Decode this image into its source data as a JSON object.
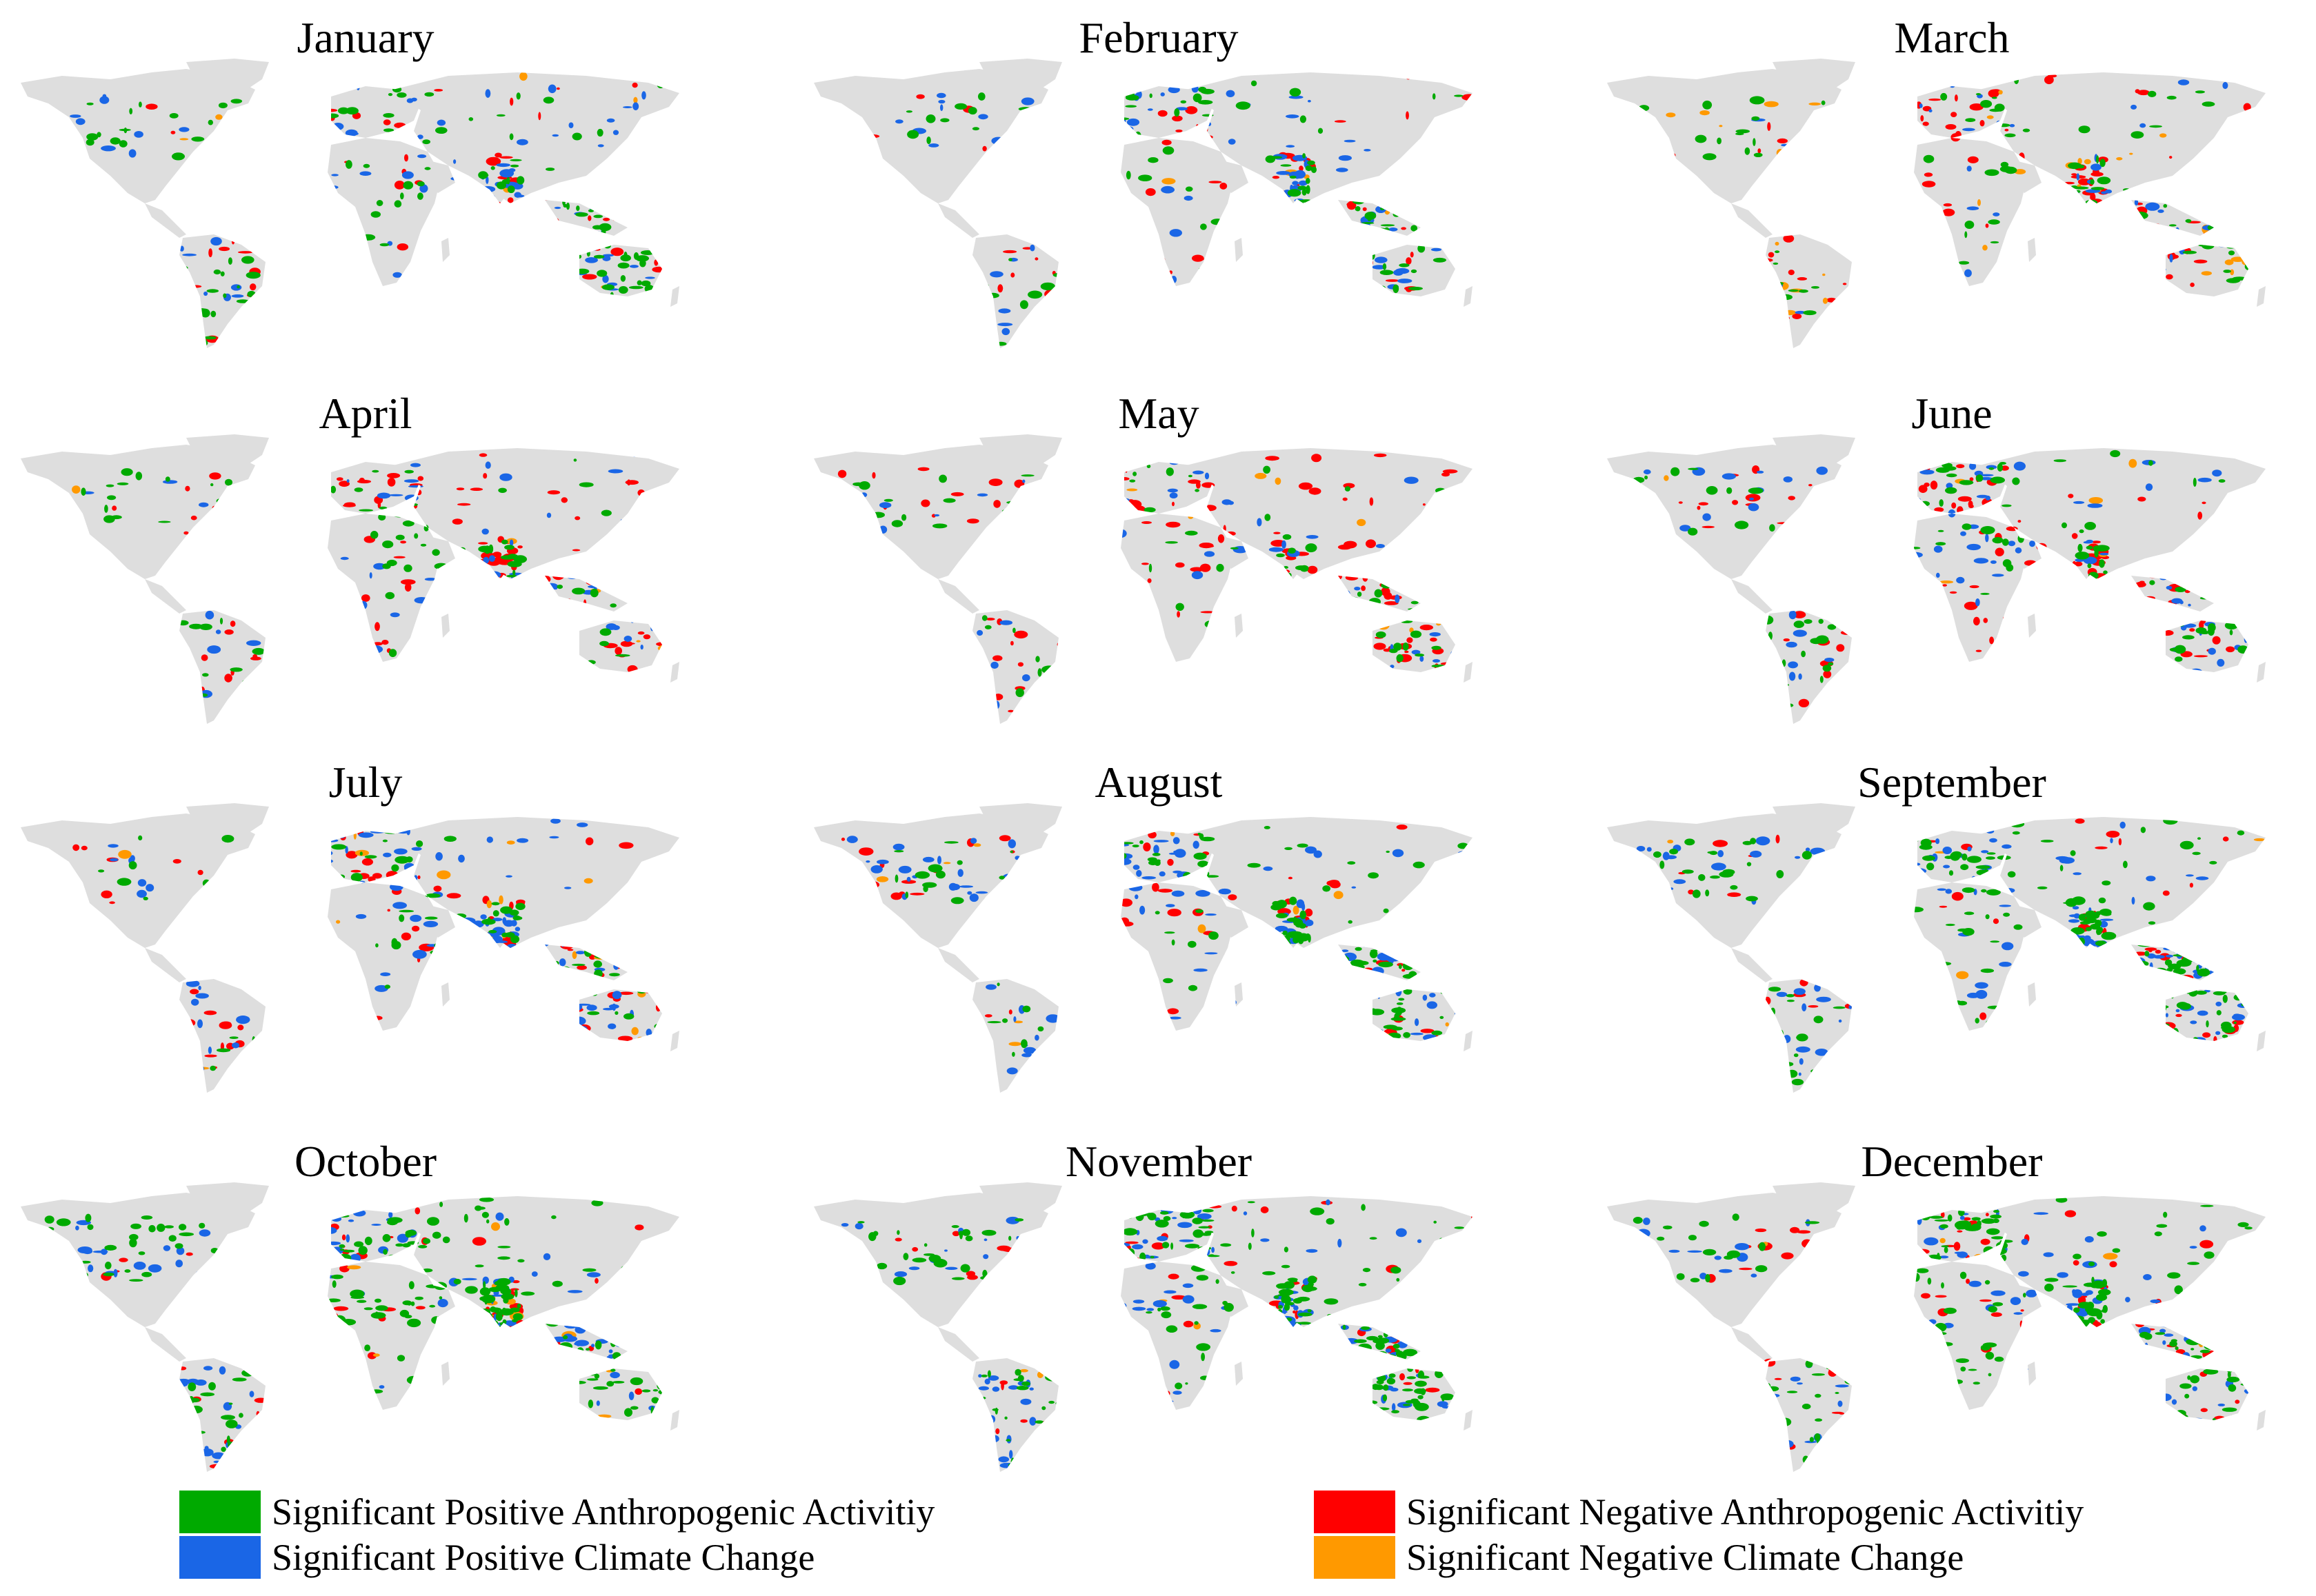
{
  "land_color": "#dedede",
  "months": [
    {
      "name": "January",
      "green": 0.9,
      "blue": 0.6,
      "red": 0.35,
      "orange": 0.05
    },
    {
      "name": "February",
      "green": 0.7,
      "blue": 0.55,
      "red": 0.45,
      "orange": 0.05
    },
    {
      "name": "March",
      "green": 0.55,
      "blue": 0.3,
      "red": 0.55,
      "orange": 0.2
    },
    {
      "name": "April",
      "green": 0.55,
      "blue": 0.35,
      "red": 0.75,
      "orange": 0.05
    },
    {
      "name": "May",
      "green": 0.55,
      "blue": 0.35,
      "red": 0.75,
      "orange": 0.05
    },
    {
      "name": "June",
      "green": 0.65,
      "blue": 0.6,
      "red": 0.7,
      "orange": 0.05
    },
    {
      "name": "July",
      "green": 0.45,
      "blue": 0.7,
      "red": 0.55,
      "orange": 0.15
    },
    {
      "name": "August",
      "green": 0.9,
      "blue": 0.85,
      "red": 0.4,
      "orange": 0.1
    },
    {
      "name": "September",
      "green": 1.3,
      "blue": 0.85,
      "red": 0.35,
      "orange": 0.05
    },
    {
      "name": "October",
      "green": 1.4,
      "blue": 0.8,
      "red": 0.4,
      "orange": 0.1
    },
    {
      "name": "November",
      "green": 1.5,
      "blue": 0.8,
      "red": 0.35,
      "orange": 0.05
    },
    {
      "name": "December",
      "green": 1.2,
      "blue": 0.7,
      "red": 0.5,
      "orange": 0.05
    }
  ],
  "legend": [
    {
      "label": "Significant Positive Anthropogenic Activitiy",
      "color": "#00aa00"
    },
    {
      "label": "Significant Positive Climate Change",
      "color": "#1a66e6"
    },
    {
      "label": "Significant Negative Anthropogenic Activitiy",
      "color": "#ff0000"
    },
    {
      "label": "Significant Negative Climate Change",
      "color": "#ff9900"
    }
  ]
}
